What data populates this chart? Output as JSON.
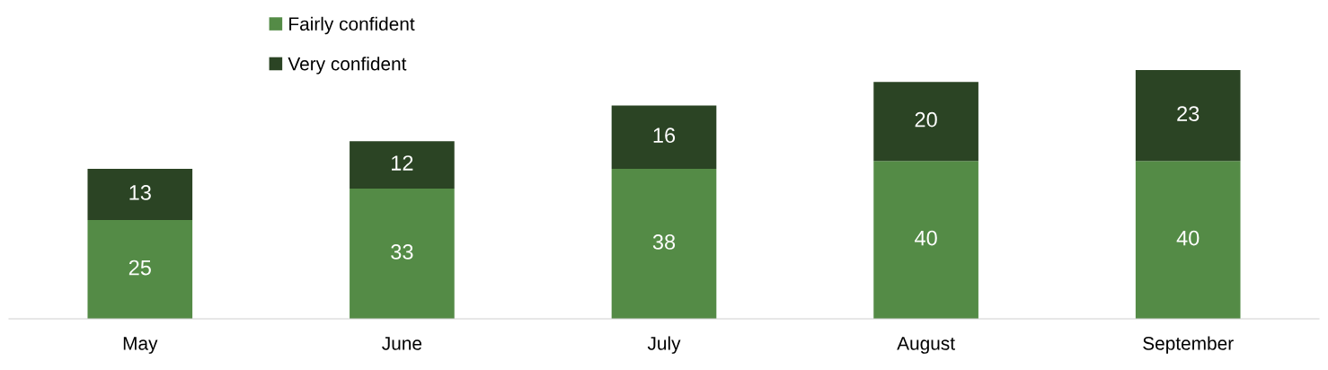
{
  "chart_data": {
    "type": "bar",
    "stacked": true,
    "categories": [
      "May",
      "June",
      "July",
      "August",
      "September"
    ],
    "series": [
      {
        "name": "Fairly confident",
        "color": "#548b46",
        "values": [
          25,
          33,
          38,
          40,
          40
        ]
      },
      {
        "name": "Very confident",
        "color": "#2b4424",
        "values": [
          13,
          12,
          16,
          20,
          23
        ]
      }
    ],
    "data_labels": true,
    "legend": "top",
    "tick_labels": "x",
    "grid": false
  }
}
